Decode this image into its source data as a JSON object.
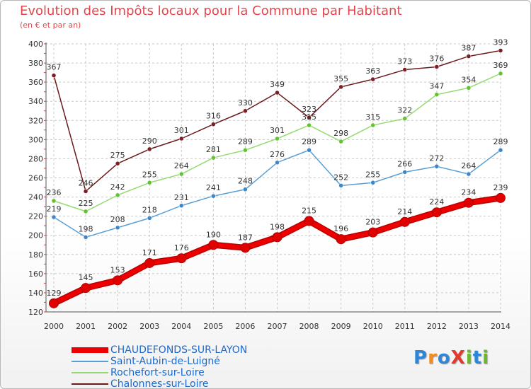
{
  "title": "Evolution des Impôts locaux pour la Commune par Habitant",
  "subtitle": "(en € et par an)",
  "logo": {
    "text": "ProXiti",
    "letters": [
      "P",
      "r",
      "o",
      "X",
      "i",
      "t",
      "i"
    ],
    "colors": [
      "#2e86d6",
      "#f28c1e",
      "#2e86d6",
      "#e23b2e",
      "#6bb82a",
      "#2e86d6",
      "#6bb82a"
    ]
  },
  "chart_data": {
    "type": "line",
    "title": "Evolution des Impôts locaux pour la Commune par Habitant",
    "subtitle": "(en € et par an)",
    "xlabel": "",
    "ylabel": "",
    "ylim": [
      120,
      400
    ],
    "yticks": [
      120,
      140,
      160,
      180,
      200,
      220,
      240,
      260,
      280,
      300,
      320,
      340,
      360,
      380,
      400
    ],
    "grid": true,
    "legend_position": "bottom-left",
    "x": [
      2000,
      2001,
      2002,
      2003,
      2004,
      2005,
      2006,
      2007,
      2008,
      2009,
      2010,
      2011,
      2012,
      2013,
      2014
    ],
    "series": [
      {
        "name": "Chalonnes-sur-Loire",
        "color": "#6b1a1c",
        "marker": "#7a1f22",
        "highlight": false,
        "values": [
          367,
          246,
          275,
          290,
          301,
          316,
          330,
          349,
          323,
          355,
          363,
          373,
          376,
          387,
          393
        ]
      },
      {
        "name": "Rochefort-sur-Loire",
        "color": "#96db72",
        "marker": "#62c232",
        "highlight": false,
        "values": [
          236,
          225,
          242,
          255,
          264,
          281,
          289,
          301,
          315,
          298,
          315,
          322,
          347,
          354,
          369
        ]
      },
      {
        "name": "Saint-Aubin-de-Luigné",
        "color": "#5a9fd4",
        "marker": "#3d86c8",
        "highlight": false,
        "values": [
          219,
          198,
          208,
          218,
          231,
          241,
          248,
          276,
          289,
          252,
          255,
          266,
          272,
          264,
          289
        ]
      },
      {
        "name": "CHAUDEFONDS-SUR-LAYON",
        "color": "#ee0000",
        "marker": "#e00000",
        "highlight": true,
        "values": [
          129,
          145,
          153,
          171,
          176,
          190,
          187,
          198,
          215,
          196,
          203,
          214,
          224,
          234,
          239
        ]
      }
    ],
    "legend_order": [
      "CHAUDEFONDS-SUR-LAYON",
      "Saint-Aubin-de-Luigné",
      "Rochefort-sur-Loire",
      "Chalonnes-sur-Loire"
    ]
  }
}
